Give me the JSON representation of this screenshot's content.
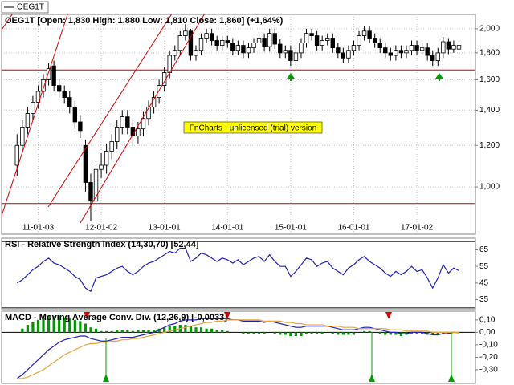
{
  "window_label": "OEG1T",
  "chart_data": [
    {
      "type": "candlestick",
      "title": "OEG1T [Open: 1,830  High: 1,880  Low: 1,810  Close: 1,860] (+1,64%)",
      "annotation": "FnCharts - unlicensed (trial) version",
      "categories": [
        null,
        null,
        null,
        null,
        "11-01-03",
        null,
        null,
        null,
        null,
        null,
        null,
        null,
        null,
        null,
        null,
        null,
        "12-01-02",
        null,
        null,
        null,
        null,
        null,
        null,
        null,
        null,
        null,
        null,
        null,
        "13-01-01",
        null,
        null,
        null,
        null,
        null,
        null,
        null,
        null,
        null,
        null,
        null,
        "14-01-01",
        null,
        null,
        null,
        null,
        null,
        null,
        null,
        null,
        null,
        null,
        null,
        "15-01-01",
        null,
        null,
        null,
        null,
        null,
        null,
        null,
        null,
        null,
        null,
        null,
        "16-01-01",
        null,
        null,
        null,
        null,
        null,
        null,
        null,
        null,
        null,
        null,
        null,
        "17-01-02",
        null,
        null,
        null,
        null,
        null,
        null,
        null,
        null
      ],
      "open": [
        1.1,
        1.2,
        1.3,
        1.38,
        1.45,
        1.52,
        1.6,
        1.7,
        1.56,
        1.52,
        1.48,
        1.42,
        1.33,
        1.2,
        1.02,
        0.94,
        1.08,
        1.1,
        1.17,
        1.22,
        1.3,
        1.36,
        1.3,
        1.25,
        1.29,
        1.35,
        1.42,
        1.48,
        1.56,
        1.65,
        1.78,
        1.82,
        1.94,
        1.98,
        1.78,
        1.82,
        1.92,
        1.96,
        1.9,
        1.86,
        1.9,
        1.88,
        1.82,
        1.86,
        1.8,
        1.84,
        1.88,
        1.92,
        1.85,
        1.96,
        1.87,
        1.8,
        1.82,
        1.74,
        1.8,
        1.88,
        1.96,
        1.94,
        1.86,
        1.9,
        1.92,
        1.84,
        1.8,
        1.76,
        1.82,
        1.86,
        1.94,
        1.98,
        1.92,
        1.88,
        1.84,
        1.8,
        1.78,
        1.82,
        1.8,
        1.82,
        1.86,
        1.82,
        1.84,
        1.78,
        1.74,
        1.8,
        1.89,
        1.83,
        1.83
      ],
      "high": [
        1.26,
        1.34,
        1.42,
        1.49,
        1.56,
        1.64,
        1.72,
        1.74,
        1.6,
        1.56,
        1.52,
        1.46,
        1.37,
        1.23,
        1.06,
        1.12,
        1.16,
        1.21,
        1.26,
        1.34,
        1.4,
        1.4,
        1.34,
        1.33,
        1.39,
        1.46,
        1.52,
        1.6,
        1.69,
        1.82,
        1.86,
        1.98,
        2.04,
        2.0,
        1.86,
        1.96,
        2.0,
        2.0,
        1.94,
        1.94,
        1.94,
        1.92,
        1.9,
        1.9,
        1.88,
        1.92,
        1.96,
        1.96,
        2.0,
        2.0,
        1.91,
        1.86,
        1.86,
        1.84,
        1.92,
        2.0,
        2.0,
        1.98,
        1.94,
        1.96,
        1.96,
        1.88,
        1.84,
        1.86,
        1.9,
        1.98,
        2.02,
        2.02,
        1.96,
        1.92,
        1.88,
        1.84,
        1.86,
        1.86,
        1.86,
        1.9,
        1.9,
        1.88,
        1.88,
        1.82,
        1.84,
        1.93,
        1.92,
        1.9,
        1.88
      ],
      "low": [
        1.05,
        1.16,
        1.26,
        1.34,
        1.41,
        1.48,
        1.56,
        1.52,
        1.48,
        1.44,
        1.38,
        1.29,
        1.24,
        0.98,
        0.86,
        0.9,
        1.04,
        1.06,
        1.13,
        1.18,
        1.26,
        1.26,
        1.21,
        1.21,
        1.25,
        1.31,
        1.38,
        1.44,
        1.52,
        1.61,
        1.74,
        1.78,
        1.9,
        1.74,
        1.74,
        1.78,
        1.88,
        1.86,
        1.82,
        1.82,
        1.84,
        1.78,
        1.78,
        1.76,
        1.76,
        1.8,
        1.84,
        1.81,
        1.81,
        1.83,
        1.76,
        1.76,
        1.7,
        1.7,
        1.76,
        1.84,
        1.9,
        1.82,
        1.82,
        1.86,
        1.8,
        1.76,
        1.72,
        1.72,
        1.78,
        1.82,
        1.9,
        1.88,
        1.84,
        1.8,
        1.76,
        1.74,
        1.74,
        1.76,
        1.76,
        1.78,
        1.78,
        1.78,
        1.74,
        1.7,
        1.7,
        1.76,
        1.79,
        1.8,
        1.81
      ],
      "close": [
        1.2,
        1.3,
        1.38,
        1.45,
        1.52,
        1.6,
        1.68,
        1.56,
        1.52,
        1.48,
        1.42,
        1.33,
        1.28,
        1.02,
        0.94,
        1.08,
        1.1,
        1.17,
        1.22,
        1.3,
        1.36,
        1.3,
        1.25,
        1.29,
        1.35,
        1.42,
        1.48,
        1.56,
        1.65,
        1.78,
        1.82,
        1.94,
        1.98,
        1.78,
        1.82,
        1.92,
        1.96,
        1.9,
        1.86,
        1.9,
        1.88,
        1.82,
        1.86,
        1.8,
        1.84,
        1.88,
        1.92,
        1.85,
        1.96,
        1.87,
        1.8,
        1.82,
        1.74,
        1.8,
        1.88,
        1.96,
        1.94,
        1.86,
        1.9,
        1.92,
        1.84,
        1.8,
        1.76,
        1.82,
        1.86,
        1.94,
        1.98,
        1.92,
        1.88,
        1.84,
        1.8,
        1.78,
        1.82,
        1.8,
        1.82,
        1.86,
        1.82,
        1.84,
        1.78,
        1.74,
        1.8,
        1.89,
        1.83,
        1.86,
        1.86
      ],
      "up_color": "#ffffff",
      "down_color": "#000000",
      "ylim": [
        0.813,
        2.13
      ],
      "log_scale": true,
      "yticks": [
        {
          "value": 1,
          "label": "1,000"
        },
        {
          "value": 1.2,
          "label": "1,200"
        },
        {
          "value": 1.4,
          "label": "1,400"
        },
        {
          "value": 1.6,
          "label": "1,600"
        },
        {
          "value": 1.8,
          "label": "1,800"
        },
        {
          "value": 2,
          "label": "2,000"
        }
      ],
      "grid": true,
      "levels": [
        1.67,
        0.93
      ],
      "level_color": "#cc0000"
    },
    {
      "type": "line",
      "title": "RSI - Relative Strength Index (14,30,70) [52,44]",
      "series": [
        {
          "color": "#2222bb",
          "values": [
            45,
            47,
            50,
            53,
            55,
            58,
            60,
            57,
            56,
            54,
            52,
            49,
            47,
            42,
            40,
            48,
            49,
            50,
            52,
            54,
            55,
            52,
            50,
            52,
            55,
            57,
            58,
            60,
            62,
            64,
            63,
            66,
            66,
            58,
            60,
            63,
            62,
            60,
            58,
            60,
            59,
            57,
            59,
            56,
            58,
            60,
            61,
            58,
            62,
            58,
            55,
            55,
            49,
            52,
            56,
            60,
            59,
            55,
            57,
            58,
            54,
            52,
            50,
            54,
            56,
            59,
            61,
            58,
            56,
            54,
            51,
            49,
            52,
            50,
            52,
            55,
            52,
            53,
            48,
            42,
            48,
            56,
            51,
            54,
            52.44
          ]
        }
      ],
      "ylim": [
        29,
        72
      ],
      "yticks": [
        35,
        45,
        55,
        65
      ],
      "levels": [
        30,
        70
      ],
      "level_color": "#000000"
    },
    {
      "type": "macd",
      "title": "MACD - Moving Average Conv. Div. (12,26,9) [-0,0033]",
      "series": [
        {
          "type": "bar",
          "color": "#009900",
          "values": [
            0.0,
            0.03,
            0.06,
            0.08,
            0.1,
            0.12,
            0.13,
            0.13,
            0.13,
            0.12,
            0.11,
            0.1,
            0.09,
            0.07,
            0.04,
            0.03,
            0.01,
            0.01,
            0.01,
            0.02,
            0.02,
            0.02,
            0.01,
            0.02,
            0.02,
            0.02,
            0.02,
            0.03,
            0.04,
            0.05,
            0.05,
            0.06,
            0.06,
            0.05,
            0.04,
            0.04,
            0.03,
            0.03,
            0.02,
            0.02,
            0.01,
            0.0,
            0.0,
            -0.01,
            -0.01,
            -0.01,
            -0.01,
            -0.01,
            0.0,
            -0.01,
            -0.02,
            -0.02,
            -0.03,
            -0.03,
            -0.03,
            -0.01,
            -0.01,
            -0.01,
            -0.01,
            0.0,
            -0.01,
            -0.02,
            -0.02,
            -0.02,
            -0.02,
            0.0,
            0.01,
            0.01,
            0.0,
            -0.01,
            -0.02,
            -0.02,
            -0.02,
            -0.03,
            -0.02,
            -0.01,
            -0.01,
            -0.01,
            -0.02,
            -0.02,
            -0.02,
            -0.01,
            -0.01,
            0.0,
            -0.003
          ]
        },
        {
          "type": "line",
          "color": "#2222bb",
          "values": [
            -0.37,
            -0.34,
            -0.3,
            -0.26,
            -0.22,
            -0.18,
            -0.14,
            -0.11,
            -0.08,
            -0.06,
            -0.05,
            -0.04,
            -0.03,
            -0.03,
            -0.05,
            -0.06,
            -0.07,
            -0.07,
            -0.06,
            -0.05,
            -0.04,
            -0.04,
            -0.04,
            -0.03,
            -0.02,
            -0.01,
            0.0,
            0.02,
            0.04,
            0.06,
            0.07,
            0.09,
            0.1,
            0.1,
            0.1,
            0.11,
            0.11,
            0.11,
            0.11,
            0.11,
            0.11,
            0.1,
            0.1,
            0.09,
            0.09,
            0.09,
            0.09,
            0.08,
            0.09,
            0.08,
            0.07,
            0.06,
            0.05,
            0.04,
            0.04,
            0.05,
            0.05,
            0.05,
            0.05,
            0.05,
            0.04,
            0.03,
            0.02,
            0.02,
            0.02,
            0.03,
            0.04,
            0.04,
            0.03,
            0.02,
            0.01,
            0.0,
            0.0,
            -0.01,
            -0.01,
            0.0,
            0.0,
            0.0,
            -0.01,
            -0.02,
            -0.02,
            -0.01,
            -0.01,
            0.0,
            -0.003
          ]
        },
        {
          "type": "line",
          "color": "#e8a33c",
          "values": [
            -0.37,
            -0.37,
            -0.36,
            -0.34,
            -0.32,
            -0.3,
            -0.27,
            -0.24,
            -0.21,
            -0.18,
            -0.16,
            -0.14,
            -0.12,
            -0.1,
            -0.09,
            -0.09,
            -0.08,
            -0.08,
            -0.07,
            -0.07,
            -0.06,
            -0.06,
            -0.05,
            -0.05,
            -0.04,
            -0.03,
            -0.02,
            -0.01,
            0.0,
            0.01,
            0.02,
            0.03,
            0.04,
            0.05,
            0.06,
            0.07,
            0.08,
            0.08,
            0.09,
            0.09,
            0.1,
            0.1,
            0.1,
            0.1,
            0.1,
            0.1,
            0.1,
            0.09,
            0.09,
            0.09,
            0.09,
            0.08,
            0.08,
            0.07,
            0.07,
            0.06,
            0.06,
            0.06,
            0.06,
            0.05,
            0.05,
            0.05,
            0.04,
            0.04,
            0.04,
            0.03,
            0.03,
            0.03,
            0.03,
            0.03,
            0.03,
            0.02,
            0.02,
            0.02,
            0.01,
            0.01,
            0.01,
            0.01,
            0.01,
            0.0,
            0.0,
            0.0,
            0.0,
            0.0,
            0.0
          ]
        }
      ],
      "ylim": [
        -0.41,
        0.17
      ],
      "yticks": [
        {
          "value": 0.1,
          "label": "0,10"
        },
        {
          "value": 0,
          "label": "0,00"
        },
        {
          "value": -0.1,
          "label": "-0,10"
        },
        {
          "value": -0.2,
          "label": "-0,20"
        },
        {
          "value": -0.3,
          "label": "-0,30"
        }
      ],
      "levels": [
        0
      ],
      "level_color": "#000000"
    }
  ]
}
